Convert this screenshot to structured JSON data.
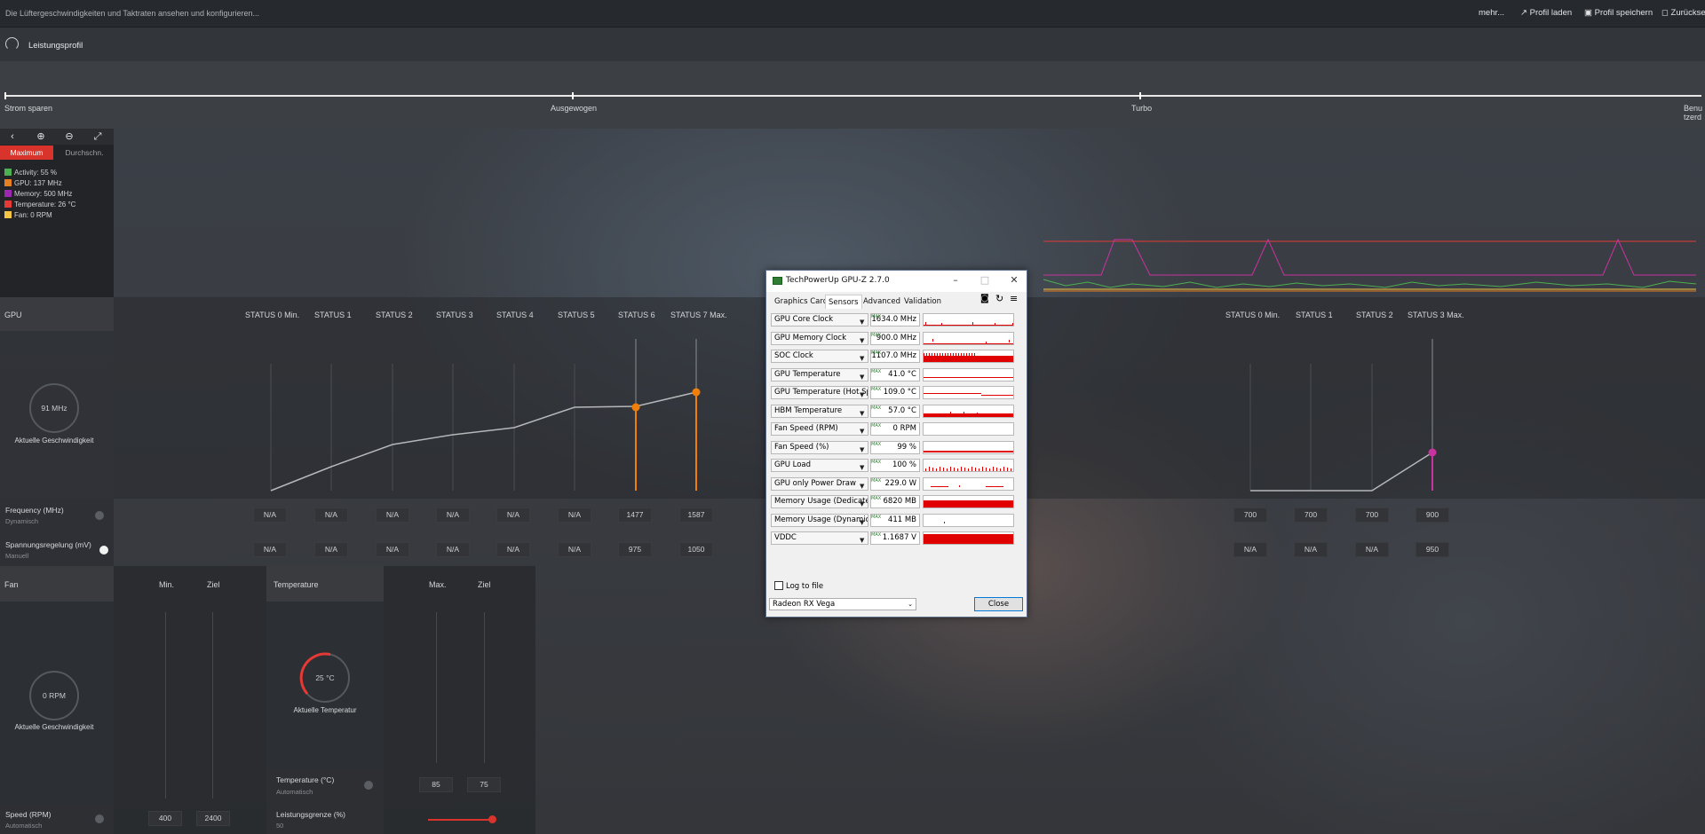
{
  "topbar": {
    "hint": "Die Lüftergeschwindigkeiten und Taktraten ansehen und konfigurieren...",
    "more": "mehr...",
    "load_profile": "Profil laden",
    "save_profile": "Profil speichern",
    "reset": "Zurücksetzen"
  },
  "profile": {
    "label": "Leistungsprofil",
    "stops": [
      "Strom sparen",
      "Ausgewogen",
      "Turbo",
      "Benutzerdefiniert"
    ]
  },
  "graph_panel": {
    "tabs": [
      "Maximum",
      "Durchschn."
    ],
    "legend": [
      {
        "label": "Activity: 55 %",
        "color": "#4caf50"
      },
      {
        "label": "GPU: 137 MHz",
        "color": "#e67e22"
      },
      {
        "label": "Memory: 500 MHz",
        "color": "#9c27b0"
      },
      {
        "label": "Temperature: 26 °C",
        "color": "#e53935"
      },
      {
        "label": "Fan: 0 RPM",
        "color": "#f4c542"
      }
    ]
  },
  "gpu": {
    "title": "GPU",
    "gauge_value": "91 MHz",
    "gauge_label": "Aktuelle Geschwindigkeit",
    "states": [
      "STATUS 0 Min.",
      "STATUS 1",
      "STATUS 2",
      "STATUS 3",
      "STATUS 4",
      "STATUS 5",
      "STATUS 6",
      "STATUS 7 Max."
    ],
    "freq_label": "Frequency (MHz)",
    "freq_sub": "Dynamisch",
    "freq_values": [
      "N/A",
      "N/A",
      "N/A",
      "N/A",
      "N/A",
      "N/A",
      "1477",
      "1587"
    ],
    "volt_label": "Spannungsregelung (mV)",
    "volt_sub": "Manuell",
    "volt_values": [
      "N/A",
      "N/A",
      "N/A",
      "N/A",
      "N/A",
      "N/A",
      "975",
      "1050"
    ]
  },
  "memory": {
    "states": [
      "STATUS 0 Min.",
      "STATUS 1",
      "STATUS 2",
      "STATUS 3 Max."
    ],
    "freq_values": [
      "700",
      "700",
      "700",
      "900"
    ],
    "volt_values": [
      "N/A",
      "N/A",
      "N/A",
      "950"
    ]
  },
  "fan": {
    "title": "Fan",
    "min": "Min.",
    "target": "Ziel",
    "gauge_value": "0 RPM",
    "gauge_label": "Aktuelle Geschwindigkeit",
    "speed_label": "Speed (RPM)",
    "speed_sub": "Automatisch",
    "speed_min": "400",
    "speed_target": "2400"
  },
  "temperature": {
    "title": "Temperature",
    "max": "Max.",
    "target": "Ziel",
    "gauge_value": "25 °C",
    "gauge_label": "Aktuelle Temperatur",
    "temp_label": "Temperature (°C)",
    "temp_sub": "Automatisch",
    "temp_max": "85",
    "temp_target": "75",
    "power_label": "Leistungsgrenze (%)",
    "power_value": "50"
  },
  "gpuz": {
    "title": "TechPowerUp GPU-Z 2.7.0",
    "tabs": [
      "Graphics Card",
      "Sensors",
      "Advanced",
      "Validation"
    ],
    "max_tag": "MAX",
    "sensors": [
      {
        "name": "GPU Core Clock",
        "value": "1634.0 MHz"
      },
      {
        "name": "GPU Memory Clock",
        "value": "900.0 MHz"
      },
      {
        "name": "SOC Clock",
        "value": "1107.0 MHz"
      },
      {
        "name": "GPU Temperature",
        "value": "41.0 °C"
      },
      {
        "name": "GPU Temperature (Hot Spot)",
        "value": "109.0 °C"
      },
      {
        "name": "HBM Temperature",
        "value": "57.0 °C"
      },
      {
        "name": "Fan Speed (RPM)",
        "value": "0 RPM"
      },
      {
        "name": "Fan Speed (%)",
        "value": "99 %"
      },
      {
        "name": "GPU Load",
        "value": "100 %"
      },
      {
        "name": "GPU only Power Draw",
        "value": "229.0 W"
      },
      {
        "name": "Memory Usage (Dedicated)",
        "value": "6820 MB"
      },
      {
        "name": "Memory Usage (Dynamic)",
        "value": "411 MB"
      },
      {
        "name": "VDDC",
        "value": "1.1687 V"
      }
    ],
    "log_to_file": "Log to file",
    "device": "Radeon RX Vega",
    "close": "Close"
  },
  "colors": {
    "accent_orange": "#f07f0a",
    "accent_red": "#d9342b",
    "accent_magenta": "#c8339f"
  }
}
